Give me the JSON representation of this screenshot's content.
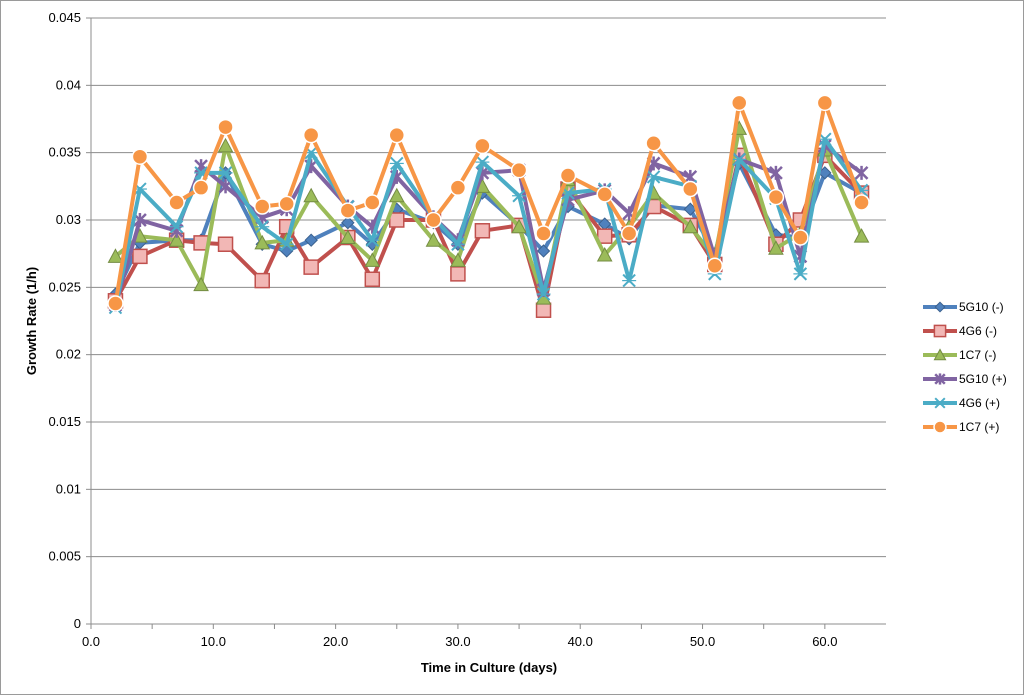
{
  "chart_data": {
    "type": "line",
    "title": "",
    "xlabel": "Time in Culture (days)",
    "ylabel": "Growth Rate (1/h)",
    "xlim": [
      0,
      65
    ],
    "ylim": [
      0,
      0.045
    ],
    "x_ticks": [
      "0.0",
      "10.0",
      "20.0",
      "30.0",
      "40.0",
      "50.0",
      "60.0"
    ],
    "x_tick_values": [
      0,
      10,
      20,
      30,
      40,
      50,
      60
    ],
    "y_ticks": [
      "0",
      "0.005",
      "0.01",
      "0.015",
      "0.02",
      "0.025",
      "0.03",
      "0.035",
      "0.04",
      "0.045"
    ],
    "y_tick_values": [
      0,
      0.005,
      0.01,
      0.015,
      0.02,
      0.025,
      0.03,
      0.035,
      0.04,
      0.045
    ],
    "grid": true,
    "legend_position": "right",
    "x": [
      2,
      4,
      7,
      9,
      11,
      14,
      16,
      18,
      21,
      23,
      25,
      28,
      30,
      32,
      35,
      37,
      39,
      42,
      44,
      46,
      49,
      51,
      53,
      56,
      58,
      60,
      63
    ],
    "series": [
      {
        "name": "5G10 (-)",
        "color": "#4f81bd",
        "marker": "diamond",
        "values": [
          0.0245,
          0.0283,
          0.0285,
          0.0285,
          0.0335,
          0.0282,
          0.0277,
          0.0285,
          0.0298,
          0.0282,
          0.0308,
          0.0298,
          0.0282,
          0.032,
          0.0296,
          0.0277,
          0.031,
          0.0297,
          0.0286,
          0.0311,
          0.0308,
          0.0275,
          0.0342,
          0.0289,
          0.0287,
          0.0335,
          0.032
        ]
      },
      {
        "name": "4G6 (-)",
        "color": "#c0504d",
        "marker": "square",
        "values": [
          0.024,
          0.0273,
          0.0285,
          0.0283,
          0.0282,
          0.0255,
          0.0295,
          0.0265,
          0.0287,
          0.0256,
          0.03,
          0.03,
          0.026,
          0.0292,
          0.0296,
          0.0233,
          0.0323,
          0.0288,
          0.0289,
          0.031,
          0.0296,
          0.0267,
          0.0348,
          0.0282,
          0.03,
          0.0348,
          0.032
        ]
      },
      {
        "name": "1C7 (-)",
        "color": "#9bbb59",
        "marker": "triangle",
        "values": [
          0.0273,
          0.0288,
          0.0285,
          0.0252,
          0.0355,
          0.0283,
          0.0285,
          0.0318,
          0.0287,
          0.027,
          0.0318,
          0.0285,
          0.027,
          0.0325,
          0.0295,
          0.0242,
          0.033,
          0.0274,
          0.0295,
          0.032,
          0.0295,
          0.0272,
          0.0368,
          0.0279,
          0.029,
          0.0352,
          0.0288
        ]
      },
      {
        "name": "5G10 (+)",
        "color": "#8064a2",
        "marker": "star",
        "values": [
          0.0237,
          0.03,
          0.0292,
          0.034,
          0.0325,
          0.0302,
          0.0308,
          0.034,
          0.031,
          0.0295,
          0.0332,
          0.0302,
          0.0285,
          0.0335,
          0.0337,
          0.0248,
          0.0315,
          0.0322,
          0.0305,
          0.0342,
          0.0332,
          0.0272,
          0.0345,
          0.0335,
          0.0273,
          0.0355,
          0.0335
        ]
      },
      {
        "name": "4G6 (+)",
        "color": "#4bacc6",
        "marker": "x",
        "values": [
          0.0235,
          0.0323,
          0.0295,
          0.0335,
          0.0335,
          0.0295,
          0.0282,
          0.035,
          0.031,
          0.0285,
          0.0342,
          0.0302,
          0.0282,
          0.0343,
          0.0318,
          0.0245,
          0.032,
          0.0323,
          0.0255,
          0.0332,
          0.0325,
          0.026,
          0.0345,
          0.0316,
          0.026,
          0.036,
          0.0322
        ]
      },
      {
        "name": "1C7 (+)",
        "color": "#f79646",
        "marker": "circle",
        "values": [
          0.0238,
          0.0347,
          0.0313,
          0.0324,
          0.0369,
          0.031,
          0.0312,
          0.0363,
          0.0307,
          0.0313,
          0.0363,
          0.03,
          0.0324,
          0.0355,
          0.0337,
          0.029,
          0.0333,
          0.0319,
          0.029,
          0.0357,
          0.0323,
          0.0266,
          0.0387,
          0.0317,
          0.0287,
          0.0387,
          0.0313
        ]
      }
    ]
  }
}
